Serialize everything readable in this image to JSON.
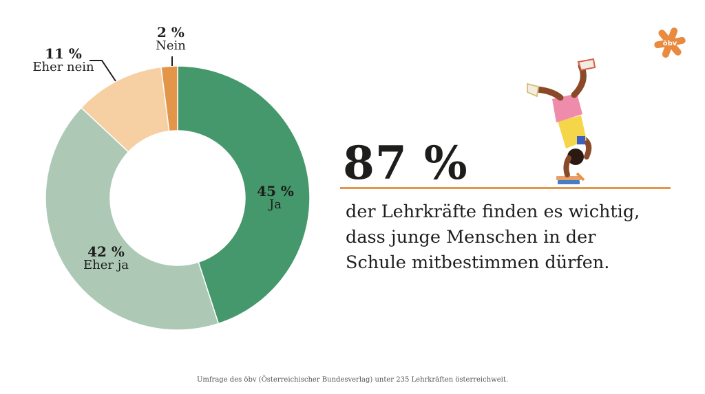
{
  "chart_data": {
    "type": "pie",
    "categories": [
      "Ja",
      "Eher ja",
      "Eher nein",
      "Nein"
    ],
    "values": [
      45,
      42,
      11,
      2
    ],
    "labels": [
      "45 %",
      "42 %",
      "11 %",
      "2 %"
    ],
    "colors": [
      "#45976c",
      "#adc9b6",
      "#f6cfa3",
      "#e3954a"
    ]
  },
  "headline": {
    "number": "87 %",
    "line1": "der Lehrkräfte finden es wichtig,",
    "line2": "dass junge Menschen in der",
    "line3": "Schule mitbestimmen dürfen."
  },
  "logo": {
    "text": "öbv",
    "color": "#ea8a3e"
  },
  "footnote": "Umfrage des öbv (Österreichischer Bundesverlag) unter 235 Lehrkräften österreichweit."
}
